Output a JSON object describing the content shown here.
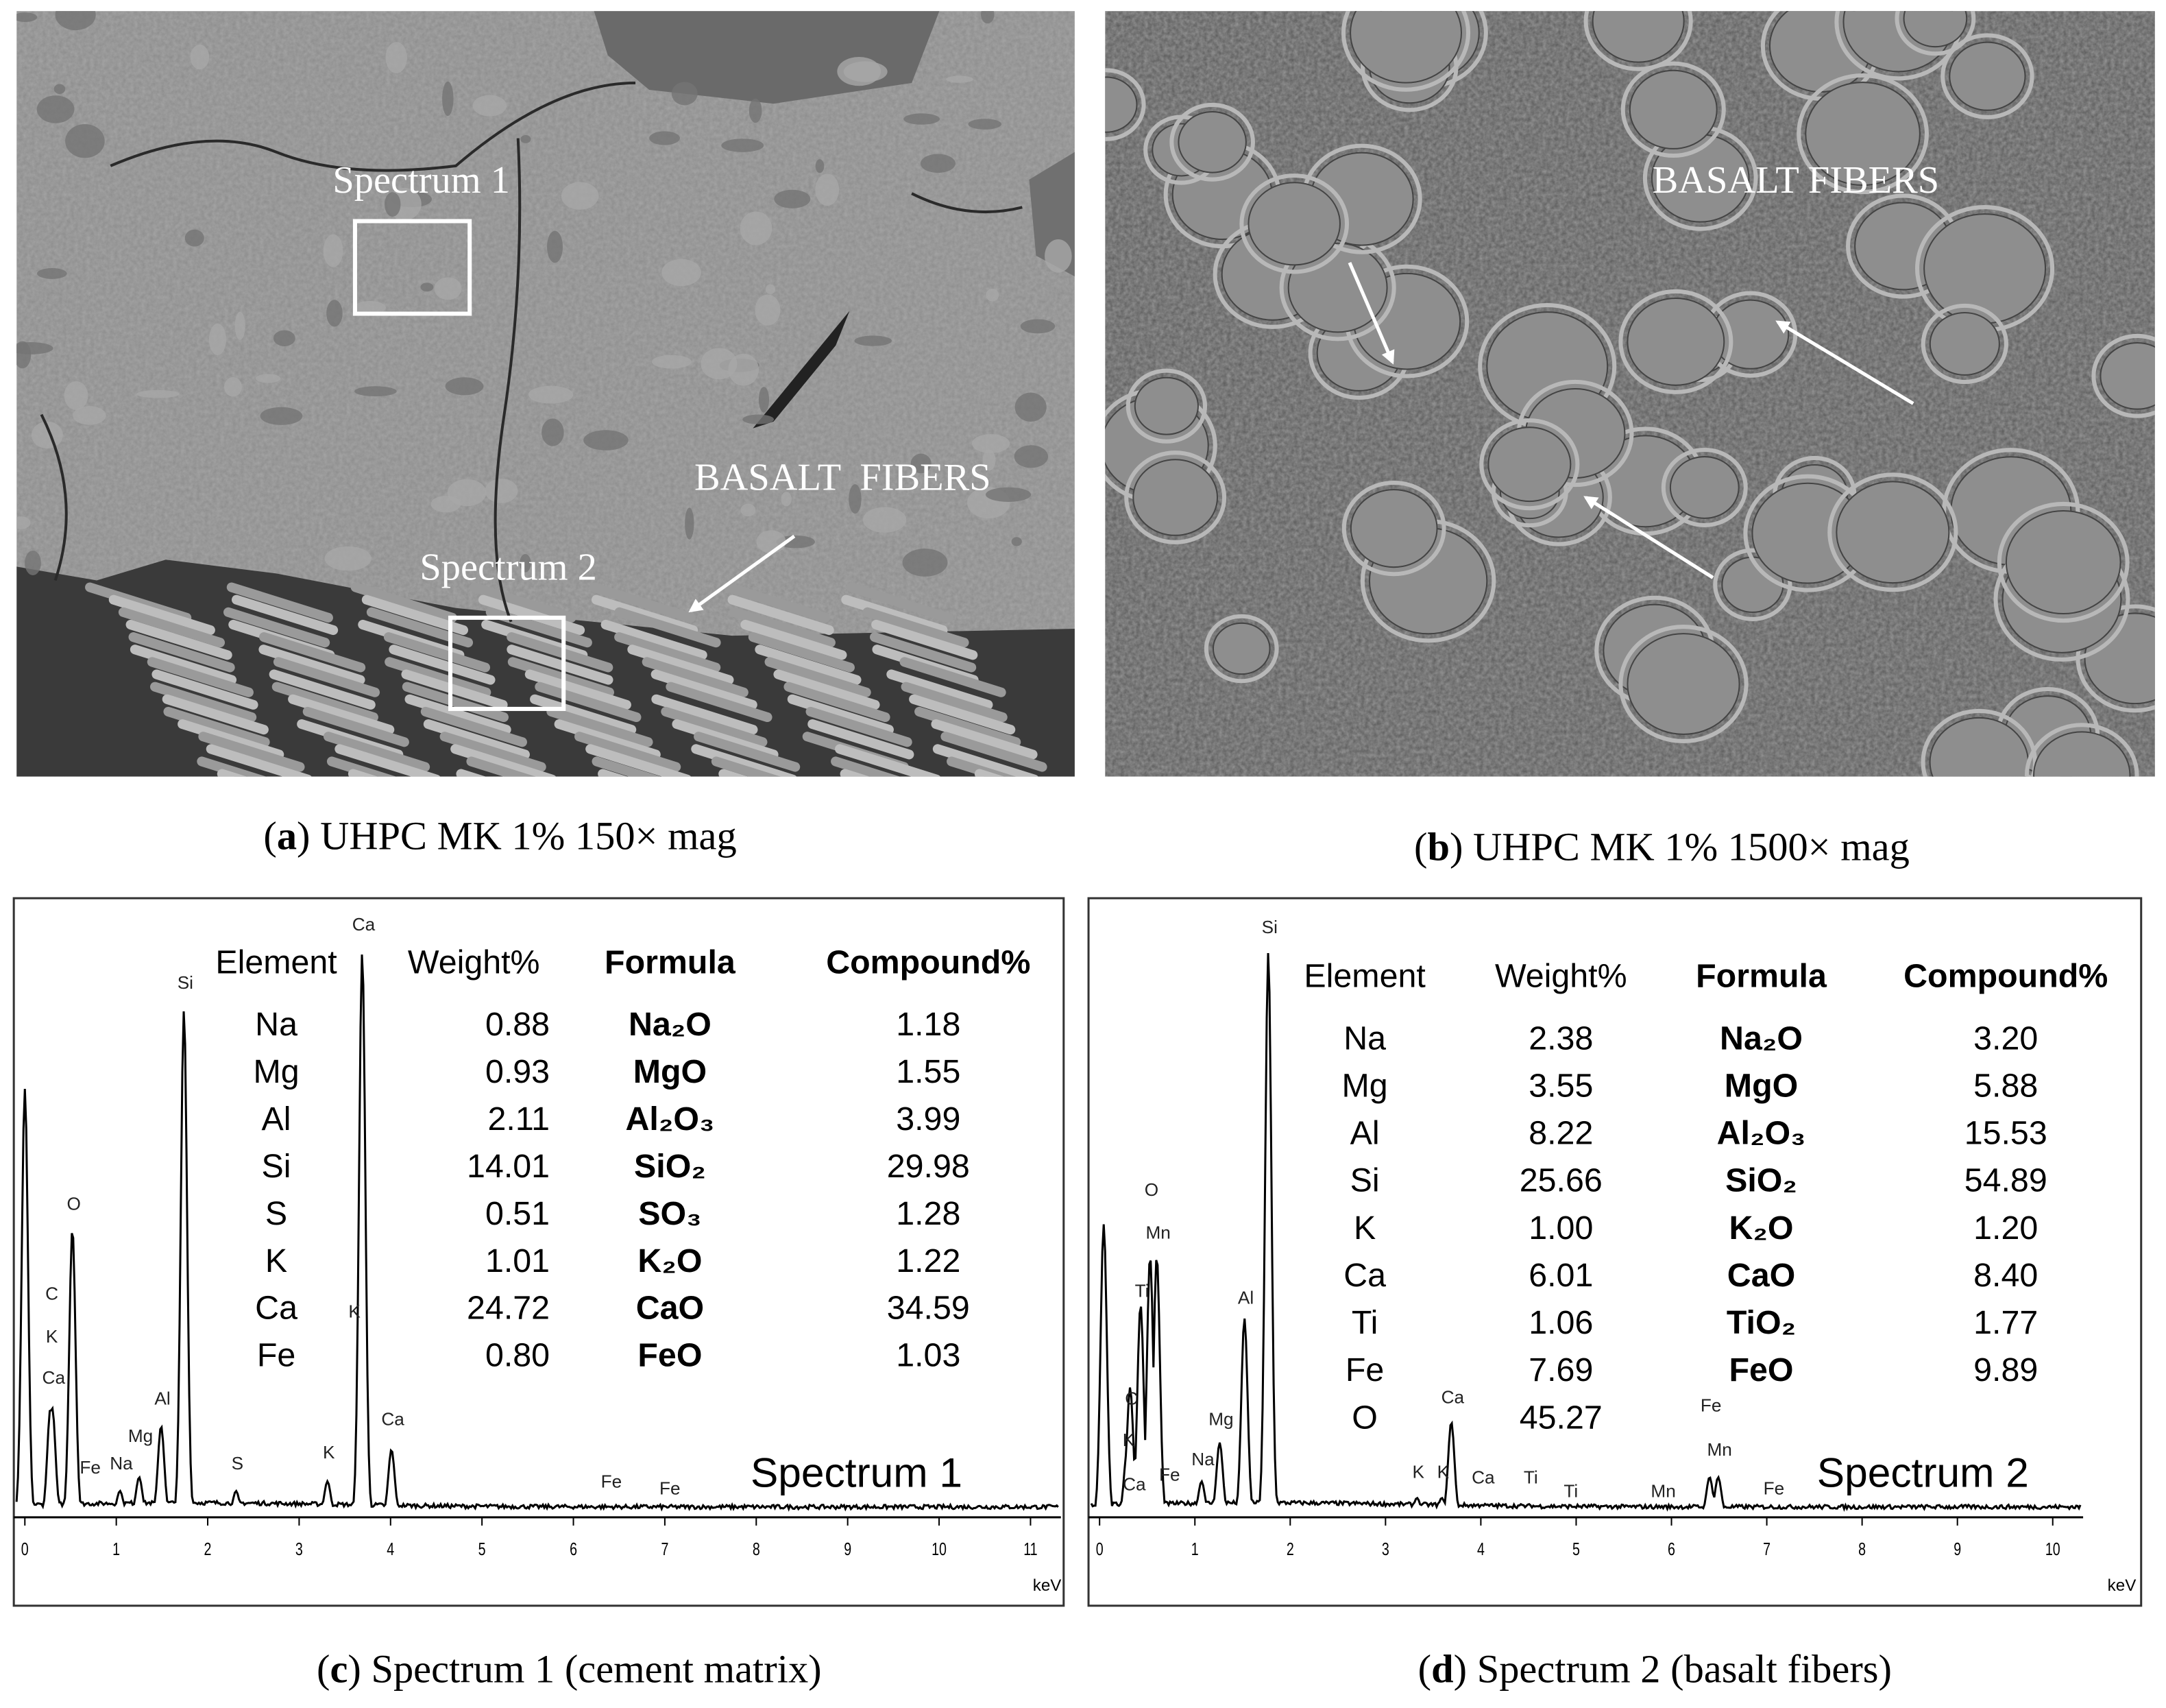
{
  "images": [
    {
      "labels": [
        "Spectrum 1",
        "BASALT  FIBERS",
        "Spectrum 2"
      ]
    },
    {
      "labels": [
        "BASALT FIBERS"
      ]
    }
  ],
  "captions": [
    [
      "(",
      "a",
      ") UHPC MK 1% 150× mag"
    ],
    [
      "(",
      "b",
      ") UHPC MK 1% 1500× mag"
    ],
    [
      "(",
      "c",
      ") Spectrum 1 (cement matrix)"
    ],
    [
      "(",
      "d",
      ") Spectrum 2 (basalt fibers)"
    ]
  ],
  "spectra": [
    {
      "name": "Spectrum 1",
      "x_unit": "keV",
      "header": [
        "Element",
        "Weight%",
        "Formula",
        "Compound%"
      ],
      "rows": [
        [
          "Na",
          "0.88",
          "Na₂O",
          "1.18"
        ],
        [
          "Mg",
          "0.93",
          "MgO",
          "1.55"
        ],
        [
          "Al",
          "2.11",
          "Al₂O₃",
          "3.99"
        ],
        [
          "Si",
          "14.01",
          "SiO₂",
          "29.98"
        ],
        [
          "S",
          "0.51",
          "SO₃",
          "1.28"
        ],
        [
          "K",
          "1.01",
          "K₂O",
          "1.22"
        ],
        [
          "Ca",
          "24.72",
          "CaO",
          "34.59"
        ],
        [
          "Fe",
          "0.80",
          "FeO",
          "1.03"
        ]
      ],
      "xticks": [
        0,
        1,
        2,
        3,
        4,
        5,
        6,
        7,
        8,
        9,
        10,
        11
      ],
      "peaks": [
        {
          "label": "C",
          "x": 0.28
        },
        {
          "label": "K",
          "x": 0.28
        },
        {
          "label": "Ca",
          "x": 0.3
        },
        {
          "label": "O",
          "x": 0.52
        },
        {
          "label": "Fe",
          "x": 0.7
        },
        {
          "label": "Na",
          "x": 1.04
        },
        {
          "label": "Mg",
          "x": 1.25
        },
        {
          "label": "Al",
          "x": 1.49
        },
        {
          "label": "Si",
          "x": 1.74
        },
        {
          "label": "S",
          "x": 2.31
        },
        {
          "label": "K",
          "x": 3.31
        },
        {
          "label": "K",
          "x": 3.59
        },
        {
          "label": "Ca",
          "x": 3.69
        },
        {
          "label": "Ca",
          "x": 4.01
        },
        {
          "label": "Fe",
          "x": 6.4
        },
        {
          "label": "Fe",
          "x": 7.04
        }
      ]
    },
    {
      "name": "Spectrum 2",
      "x_unit": "keV",
      "header": [
        "Element",
        "Weight%",
        "Formula",
        "Compound%"
      ],
      "rows": [
        [
          "Na",
          "2.38",
          "Na₂O",
          "3.20"
        ],
        [
          "Mg",
          "3.55",
          "MgO",
          "5.88"
        ],
        [
          "Al",
          "8.22",
          "Al₂O₃",
          "15.53"
        ],
        [
          "Si",
          "25.66",
          "SiO₂",
          "54.89"
        ],
        [
          "K",
          "1.00",
          "K₂O",
          "1.20"
        ],
        [
          "Ca",
          "6.01",
          "CaO",
          "8.40"
        ],
        [
          "Ti",
          "1.06",
          "TiO₂",
          "1.77"
        ],
        [
          "Fe",
          "7.69",
          "FeO",
          "9.89"
        ],
        [
          "O",
          "45.27"
        ]
      ],
      "xticks": [
        0,
        1,
        2,
        3,
        4,
        5,
        6,
        7,
        8,
        9,
        10
      ],
      "peaks": [
        {
          "label": "K",
          "x": 0.29
        },
        {
          "label": "C",
          "x": 0.32
        },
        {
          "label": "Ca",
          "x": 0.35
        },
        {
          "label": "Ti",
          "x": 0.43
        },
        {
          "label": "O",
          "x": 0.53
        },
        {
          "label": "Mn",
          "x": 0.6
        },
        {
          "label": "Fe",
          "x": 0.72
        },
        {
          "label": "Na",
          "x": 1.07
        },
        {
          "label": "Mg",
          "x": 1.26
        },
        {
          "label": "Al",
          "x": 1.52
        },
        {
          "label": "Si",
          "x": 1.77
        },
        {
          "label": "K",
          "x": 3.33
        },
        {
          "label": "K",
          "x": 3.59
        },
        {
          "label": "Ca",
          "x": 3.69
        },
        {
          "label": "Ca",
          "x": 4.01
        },
        {
          "label": "Ti",
          "x": 4.51
        },
        {
          "label": "Ti",
          "x": 4.93
        },
        {
          "label": "Mn",
          "x": 5.9
        },
        {
          "label": "Fe",
          "x": 6.4
        },
        {
          "label": "Mn",
          "x": 6.49
        },
        {
          "label": "Fe",
          "x": 7.06
        }
      ]
    }
  ]
}
